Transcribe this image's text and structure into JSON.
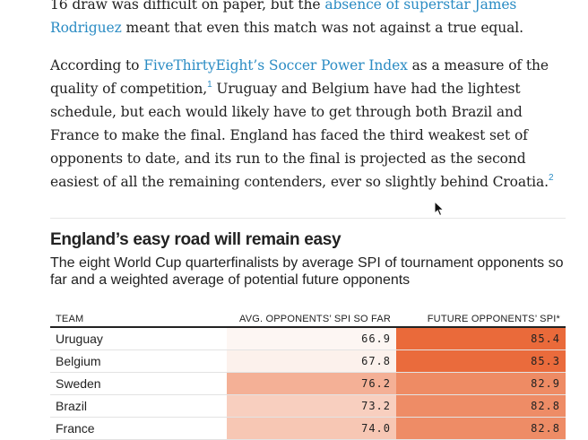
{
  "article": {
    "p1": {
      "t1": "16 draw was difficult on paper, but the ",
      "link": "absence of superstar James Rodriguez",
      "t2": " meant that even this match was not against a true equal."
    },
    "p2": {
      "t1": "According to ",
      "link": "FiveThirtyEight’s Soccer Power Index",
      "t2": " as a measure of the quality of competition,",
      "fn1": "1",
      "t3": " Uruguay and Belgium have had the lightest schedule, but each would likely have to get through both Brazil and France to make the final. England has faced the third weakest set of opponents to date, and its run to the final is projected as the second easiest of all the remaining contenders, ever so slightly behind Croatia.",
      "fn2": "2"
    }
  },
  "chart": {
    "title": "England’s easy road will remain easy",
    "subtitle": "The eight World Cup quarterfinalists by average SPI of tournament opponents so far and a weighted average of potential future opponents"
  },
  "chart_data": {
    "type": "table",
    "columns": [
      "TEAM",
      "AVG. OPPONENTS’ SPI SO FAR",
      "FUTURE OPPONENTS’ SPI*"
    ],
    "rows": [
      {
        "team": "Uruguay",
        "so_far": "66.9",
        "future": "85.4",
        "so_far_color": "#fdf6f3",
        "future_color": "#ea6a3a"
      },
      {
        "team": "Belgium",
        "so_far": "67.8",
        "future": "85.3",
        "so_far_color": "#fcf1ec",
        "future_color": "#ea6b3c"
      },
      {
        "team": "Sweden",
        "so_far": "76.2",
        "future": "82.9",
        "so_far_color": "#f4b096",
        "future_color": "#ee8b64"
      },
      {
        "team": "Brazil",
        "so_far": "73.2",
        "future": "82.8",
        "so_far_color": "#f8cfbf",
        "future_color": "#ee8c66"
      },
      {
        "team": "France",
        "so_far": "74.0",
        "future": "82.8",
        "so_far_color": "#f7c7b4",
        "future_color": "#ee8c66"
      }
    ]
  },
  "icons": {
    "cursor": "mouse-pointer-icon"
  }
}
